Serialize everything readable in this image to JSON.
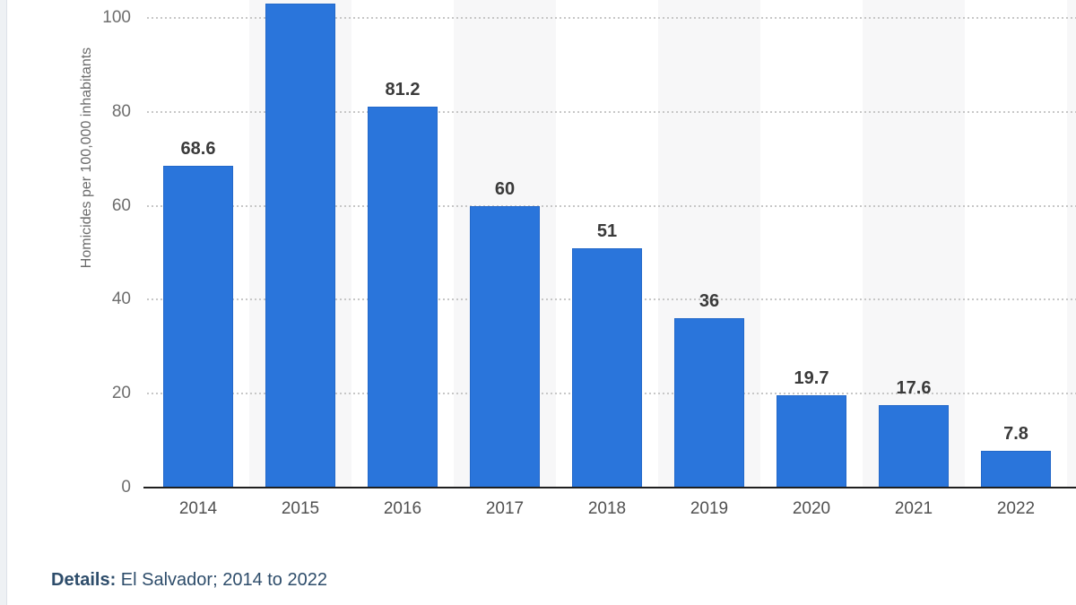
{
  "details": {
    "label": "Details:",
    "value": " El Salvador; 2014 to 2022"
  },
  "colors": {
    "bar_fill": "#2a75db",
    "bar_border": "#2368c9",
    "band_shade": "#f7f7f8",
    "gridline": "#c7c7c7",
    "axis_line": "#1f1f1f",
    "tick_text": "#6e6e6e",
    "value_text": "#3a3a3a",
    "details_text": "#2e4d6b"
  },
  "chart_data": {
    "type": "bar",
    "title": "",
    "categories": [
      "2014",
      "2015",
      "2016",
      "2017",
      "2018",
      "2019",
      "2020",
      "2021",
      "2022"
    ],
    "values": [
      68.6,
      103,
      81.2,
      60,
      51,
      36,
      19.7,
      17.6,
      7.8
    ],
    "value_labels": [
      "68.6",
      "",
      "81.2",
      "60",
      "51",
      "36",
      "19.7",
      "17.6",
      "7.8"
    ],
    "xlabel": "",
    "ylabel": "Homicides per 100,000 inhabitants",
    "yticks": [
      100,
      80,
      60,
      40,
      20,
      0
    ],
    "ylim": [
      0,
      100
    ],
    "grid": "dotted horizontal",
    "legend": "none",
    "notes": "2015 bar exceeds the visible axis top; its data label is cut off by the crop. Alternating vertical background shading per category column."
  }
}
